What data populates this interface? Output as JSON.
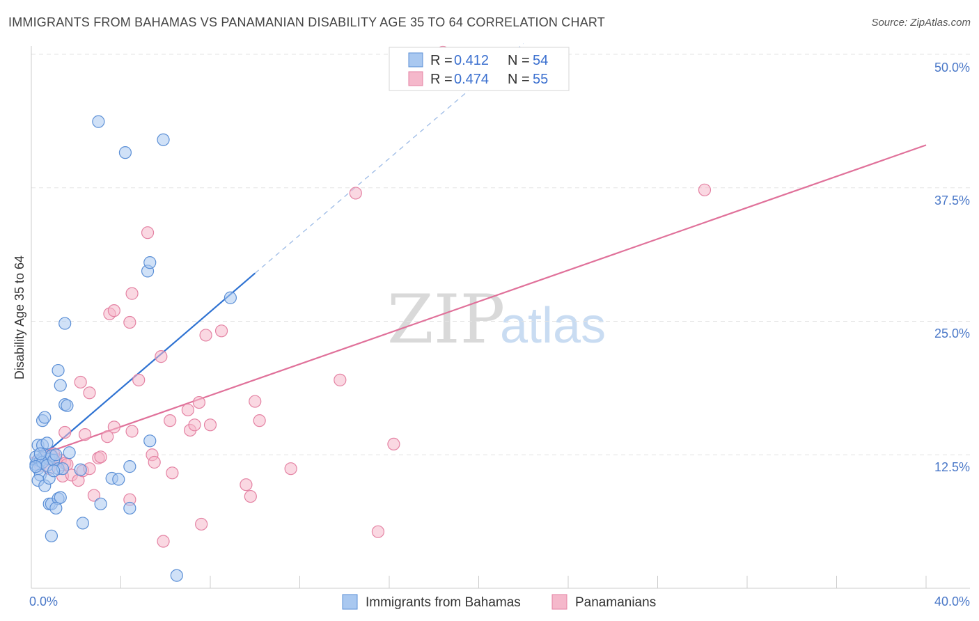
{
  "title": "IMMIGRANTS FROM BAHAMAS VS PANAMANIAN DISABILITY AGE 35 TO 64 CORRELATION CHART",
  "source": "Source: ZipAtlas.com",
  "watermark": {
    "zip": "ZIP",
    "atlas": "atlas"
  },
  "colors": {
    "blue_fill": "#a9c8f0",
    "blue_stroke": "#5b8fd6",
    "blue_line": "#2e72d2",
    "pink_fill": "#f5b8cb",
    "pink_stroke": "#e482a3",
    "pink_line": "#e0719a",
    "grid": "#e3e3e3",
    "axis_label": "#4a78c8"
  },
  "legend": {
    "rows": [
      {
        "r_label": "R = ",
        "r_value": "0.412",
        "n_label": "N = ",
        "n_value": "54"
      },
      {
        "r_label": "R = ",
        "r_value": "0.474",
        "n_label": "N = ",
        "n_value": "55"
      }
    ]
  },
  "bottom_legend": [
    "Immigrants from Bahamas",
    "Panamanians"
  ],
  "chart_data": {
    "type": "scatter",
    "xlabel": "",
    "ylabel": "Disability Age 35 to 64",
    "xlim": [
      0,
      40
    ],
    "ylim": [
      0,
      50
    ],
    "x_tick_labels": [
      "0.0%",
      "40.0%"
    ],
    "y_ticks": [
      12.5,
      25.0,
      37.5,
      50.0
    ],
    "y_tick_labels": [
      "12.5%",
      "25.0%",
      "37.5%",
      "50.0%"
    ],
    "grid": true,
    "legend_position": "top-center",
    "series": [
      {
        "name": "Immigrants from Bahamas",
        "r": 0.412,
        "n": 54,
        "trend": {
          "x0": 0.0,
          "y0": 11.5,
          "x1": 10.0,
          "y1": 29.5,
          "dash_to_x": 22.0,
          "dash_to_y": 51.0
        },
        "points": [
          [
            0.3,
            12.0
          ],
          [
            0.5,
            12.2
          ],
          [
            0.2,
            11.6
          ],
          [
            0.4,
            11.9
          ],
          [
            0.6,
            12.5
          ],
          [
            0.3,
            11.2
          ],
          [
            0.2,
            12.3
          ],
          [
            0.8,
            12.1
          ],
          [
            0.5,
            11.8
          ],
          [
            0.9,
            12.4
          ],
          [
            0.7,
            11.5
          ],
          [
            1.0,
            12.0
          ],
          [
            0.4,
            10.6
          ],
          [
            0.3,
            10.1
          ],
          [
            0.6,
            9.6
          ],
          [
            0.8,
            10.3
          ],
          [
            1.2,
            11.2
          ],
          [
            1.4,
            11.2
          ],
          [
            1.7,
            12.7
          ],
          [
            2.2,
            11.1
          ],
          [
            0.3,
            13.4
          ],
          [
            0.5,
            13.4
          ],
          [
            0.7,
            13.6
          ],
          [
            1.1,
            12.5
          ],
          [
            0.5,
            15.7
          ],
          [
            0.6,
            16.0
          ],
          [
            1.5,
            17.2
          ],
          [
            1.6,
            17.1
          ],
          [
            1.3,
            19.0
          ],
          [
            1.2,
            20.4
          ],
          [
            1.5,
            24.8
          ],
          [
            0.8,
            7.9
          ],
          [
            0.9,
            7.9
          ],
          [
            1.2,
            8.4
          ],
          [
            1.3,
            8.5
          ],
          [
            1.1,
            7.5
          ],
          [
            0.9,
            4.9
          ],
          [
            2.3,
            6.1
          ],
          [
            3.1,
            7.9
          ],
          [
            3.6,
            10.3
          ],
          [
            3.9,
            10.2
          ],
          [
            4.4,
            7.5
          ],
          [
            4.4,
            11.4
          ],
          [
            5.2,
            29.7
          ],
          [
            5.3,
            30.5
          ],
          [
            5.3,
            13.8
          ],
          [
            6.5,
            1.2
          ],
          [
            8.9,
            27.2
          ],
          [
            3.0,
            43.7
          ],
          [
            4.2,
            40.8
          ],
          [
            5.9,
            42.0
          ],
          [
            0.2,
            11.4
          ],
          [
            0.4,
            12.6
          ],
          [
            1.0,
            11.0
          ]
        ]
      },
      {
        "name": "Panamanians",
        "r": 0.474,
        "n": 55,
        "trend": {
          "x0": 0.0,
          "y0": 12.2,
          "x1": 40.0,
          "y1": 41.5
        },
        "points": [
          [
            0.3,
            12.0
          ],
          [
            0.5,
            11.8
          ],
          [
            0.7,
            12.2
          ],
          [
            0.9,
            12.5
          ],
          [
            0.4,
            11.5
          ],
          [
            1.1,
            12.1
          ],
          [
            1.3,
            12.0
          ],
          [
            1.5,
            11.7
          ],
          [
            0.6,
            12.4
          ],
          [
            0.8,
            11.2
          ],
          [
            1.0,
            12.6
          ],
          [
            1.6,
            11.6
          ],
          [
            1.4,
            10.5
          ],
          [
            1.8,
            10.6
          ],
          [
            2.1,
            10.1
          ],
          [
            2.3,
            11.0
          ],
          [
            2.6,
            11.2
          ],
          [
            2.8,
            8.7
          ],
          [
            3.0,
            12.2
          ],
          [
            3.1,
            12.3
          ],
          [
            3.4,
            14.2
          ],
          [
            2.4,
            14.4
          ],
          [
            1.5,
            14.6
          ],
          [
            3.7,
            15.1
          ],
          [
            4.5,
            14.7
          ],
          [
            5.4,
            12.5
          ],
          [
            5.5,
            11.8
          ],
          [
            4.4,
            8.3
          ],
          [
            6.3,
            10.8
          ],
          [
            6.2,
            15.7
          ],
          [
            7.1,
            14.8
          ],
          [
            7.3,
            15.3
          ],
          [
            7.0,
            16.7
          ],
          [
            7.5,
            17.4
          ],
          [
            8.0,
            15.3
          ],
          [
            2.2,
            19.3
          ],
          [
            2.6,
            18.3
          ],
          [
            4.8,
            19.5
          ],
          [
            5.8,
            21.7
          ],
          [
            3.5,
            25.7
          ],
          [
            3.7,
            26.0
          ],
          [
            4.4,
            24.9
          ],
          [
            4.5,
            27.6
          ],
          [
            7.8,
            23.7
          ],
          [
            8.5,
            24.1
          ],
          [
            5.2,
            33.3
          ],
          [
            9.6,
            9.7
          ],
          [
            9.8,
            8.6
          ],
          [
            10.0,
            17.5
          ],
          [
            10.2,
            15.7
          ],
          [
            11.6,
            11.2
          ],
          [
            13.8,
            19.5
          ],
          [
            15.5,
            5.3
          ],
          [
            16.2,
            13.5
          ],
          [
            5.9,
            4.4
          ]
        ],
        "extra_points": [
          [
            7.6,
            6.0
          ],
          [
            14.5,
            37.0
          ],
          [
            30.1,
            37.3
          ],
          [
            18.4,
            50.2
          ]
        ]
      }
    ]
  }
}
